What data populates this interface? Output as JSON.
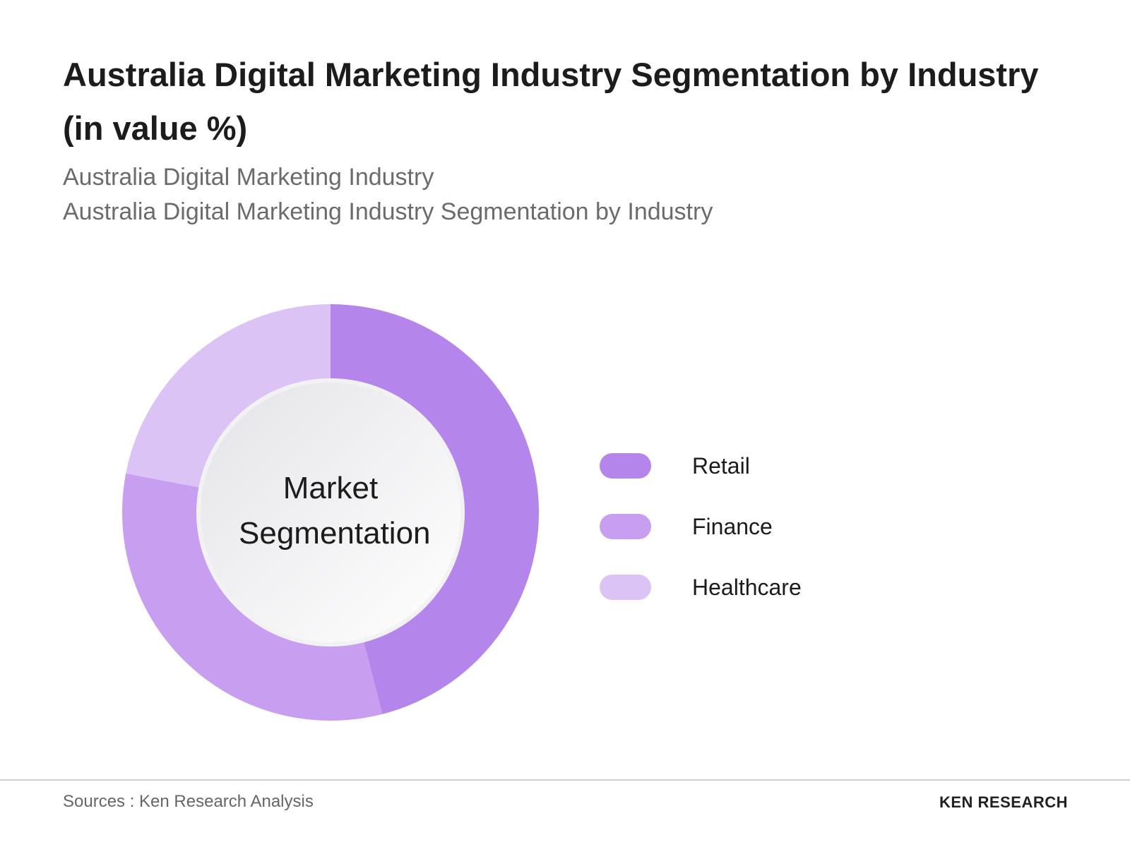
{
  "chart_data": {
    "type": "pie",
    "donut": true,
    "title": "Australia Digital Marketing Industry Segmentation by Industry (in value %)",
    "subtitle": [
      "Australia Digital Marketing Industry",
      "Australia Digital Marketing Industry Segmentation by Industry"
    ],
    "center_label": "Market Segmentation",
    "categories": [
      "Retail",
      "Finance",
      "Healthcare"
    ],
    "values": [
      46,
      32,
      22
    ],
    "colors": [
      "#b485eb",
      "#c79ef0",
      "#dcc3f6"
    ],
    "source": "Sources : Ken Research Analysis",
    "brand": "KEN RESEARCH"
  }
}
